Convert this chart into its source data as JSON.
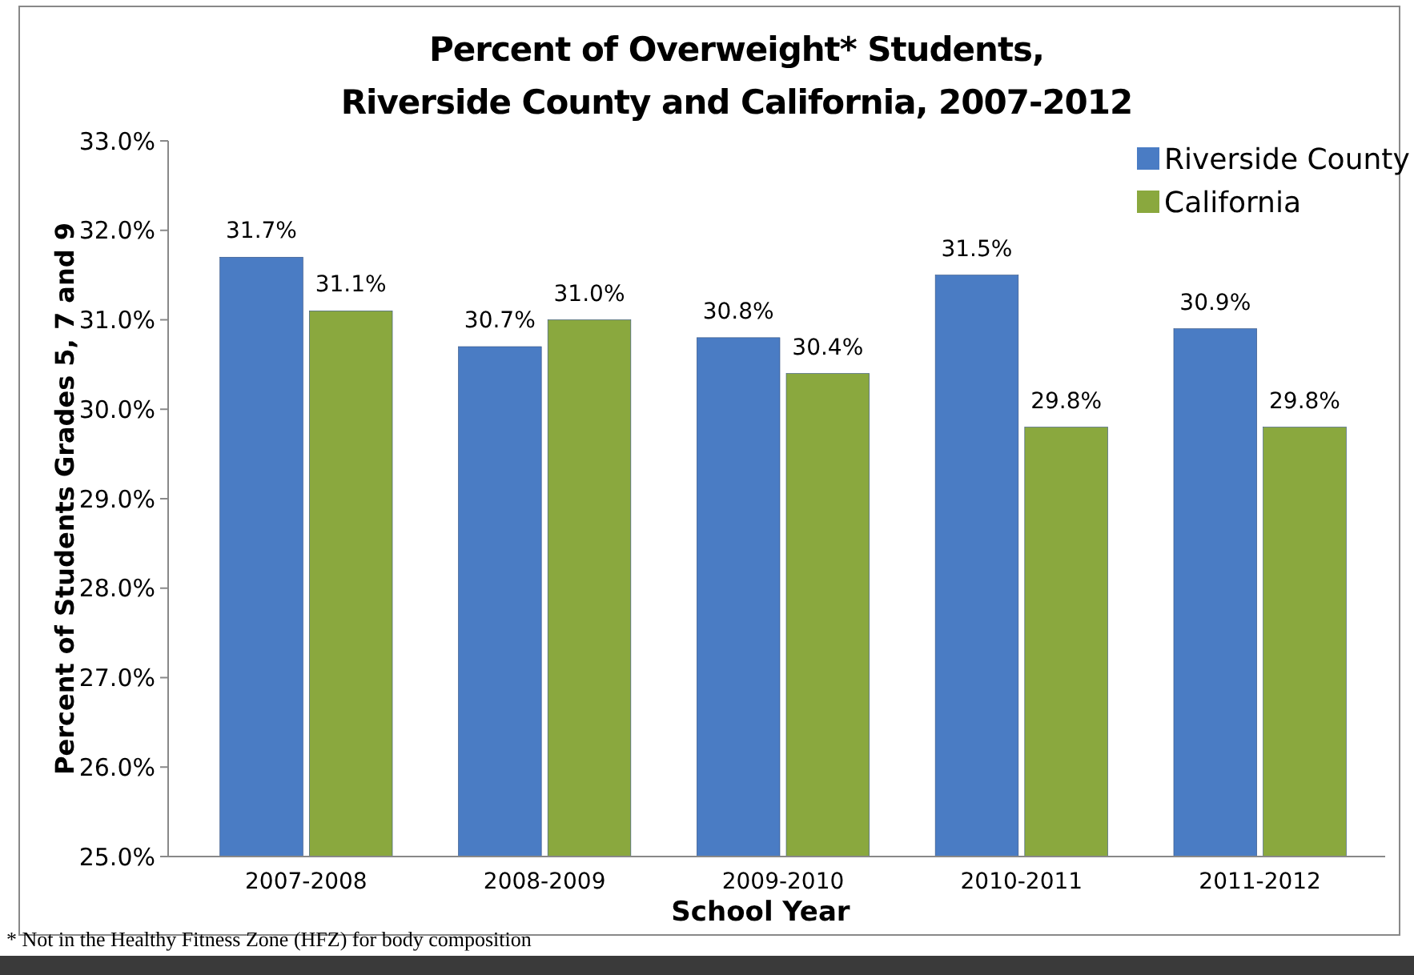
{
  "chart_data": {
    "type": "bar",
    "title": "Percent of Overweight* Students,\nRiverside County and California, 2007-2012",
    "xlabel": "School Year",
    "ylabel": "Percent of Students  Grades 5, 7 and 9",
    "categories": [
      "2007-2008",
      "2008-2009",
      "2009-2010",
      "2010-2011",
      "2011-2012"
    ],
    "series": [
      {
        "name": "Riverside County",
        "color": "#4a7cc4",
        "values": [
          31.7,
          30.7,
          30.8,
          31.5,
          30.9
        ],
        "value_labels": [
          "31.7%",
          "30.7%",
          "30.8%",
          "31.5%",
          "30.9%"
        ]
      },
      {
        "name": "California",
        "color": "#8aa83e",
        "values": [
          31.1,
          31.0,
          30.4,
          29.8,
          29.8
        ],
        "value_labels": [
          "31.1%",
          "31.0%",
          "30.4%",
          "29.8%",
          "29.8%"
        ]
      }
    ],
    "ylim": [
      25,
      33
    ],
    "yticks": [
      {
        "value": 25,
        "label": "25.0%"
      },
      {
        "value": 26,
        "label": "26.0%"
      },
      {
        "value": 27,
        "label": "27.0%"
      },
      {
        "value": 28,
        "label": "28.0%"
      },
      {
        "value": 29,
        "label": "29.0%"
      },
      {
        "value": 30,
        "label": "30.0%"
      },
      {
        "value": 31,
        "label": "31.0%"
      },
      {
        "value": 32,
        "label": "32.0%"
      },
      {
        "value": 33,
        "label": "33.0%"
      }
    ],
    "grid": false,
    "legend": "top right",
    "annotations": [
      "* Not in the Healthy Fitness Zone (HFZ) for body composition"
    ]
  }
}
